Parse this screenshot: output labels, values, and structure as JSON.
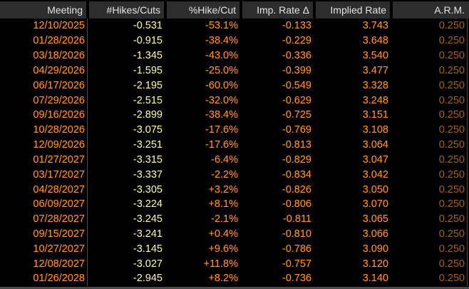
{
  "colors": {
    "background": "#000000",
    "header_bg": "#2d2d2d",
    "header_text": "#e4e4e8",
    "date_orange": "#ff9421",
    "value_yellow": "#ffffa6",
    "value_orange": "#ff9421",
    "arm_dim": "#a5610d",
    "divider": "#4a4a4a"
  },
  "table": {
    "columns": [
      "Meeting",
      "#Hikes/Cuts",
      "%Hike/Cut",
      "Imp. Rate Δ",
      "Implied Rate",
      "A.R.M."
    ],
    "rows": [
      {
        "meeting": "12/10/2025",
        "hikes_cuts": "-0.531",
        "pct_hike_cut": "-53.1%",
        "imp_rate_delta": "-0.133",
        "implied_rate": "3.743",
        "arm": "0.250"
      },
      {
        "meeting": "01/28/2026",
        "hikes_cuts": "-0.915",
        "pct_hike_cut": "-38.4%",
        "imp_rate_delta": "-0.229",
        "implied_rate": "3.648",
        "arm": "0.250"
      },
      {
        "meeting": "03/18/2026",
        "hikes_cuts": "-1.345",
        "pct_hike_cut": "-43.0%",
        "imp_rate_delta": "-0.336",
        "implied_rate": "3.540",
        "arm": "0.250"
      },
      {
        "meeting": "04/29/2026",
        "hikes_cuts": "-1.595",
        "pct_hike_cut": "-25.0%",
        "imp_rate_delta": "-0.399",
        "implied_rate": "3.477",
        "arm": "0.250"
      },
      {
        "meeting": "06/17/2026",
        "hikes_cuts": "-2.195",
        "pct_hike_cut": "-60.0%",
        "imp_rate_delta": "-0.549",
        "implied_rate": "3.328",
        "arm": "0.250"
      },
      {
        "meeting": "07/29/2026",
        "hikes_cuts": "-2.515",
        "pct_hike_cut": "-32.0%",
        "imp_rate_delta": "-0.629",
        "implied_rate": "3.248",
        "arm": "0.250"
      },
      {
        "meeting": "09/16/2026",
        "hikes_cuts": "-2.899",
        "pct_hike_cut": "-38.4%",
        "imp_rate_delta": "-0.725",
        "implied_rate": "3.151",
        "arm": "0.250"
      },
      {
        "meeting": "10/28/2026",
        "hikes_cuts": "-3.075",
        "pct_hike_cut": "-17.6%",
        "imp_rate_delta": "-0.769",
        "implied_rate": "3.108",
        "arm": "0.250"
      },
      {
        "meeting": "12/09/2026",
        "hikes_cuts": "-3.251",
        "pct_hike_cut": "-17.6%",
        "imp_rate_delta": "-0.813",
        "implied_rate": "3.064",
        "arm": "0.250"
      },
      {
        "meeting": "01/27/2027",
        "hikes_cuts": "-3.315",
        "pct_hike_cut": "-6.4%",
        "imp_rate_delta": "-0.829",
        "implied_rate": "3.047",
        "arm": "0.250"
      },
      {
        "meeting": "03/17/2027",
        "hikes_cuts": "-3.337",
        "pct_hike_cut": "-2.2%",
        "imp_rate_delta": "-0.834",
        "implied_rate": "3.042",
        "arm": "0.250"
      },
      {
        "meeting": "04/28/2027",
        "hikes_cuts": "-3.305",
        "pct_hike_cut": "+3.2%",
        "imp_rate_delta": "-0.826",
        "implied_rate": "3.050",
        "arm": "0.250"
      },
      {
        "meeting": "06/09/2027",
        "hikes_cuts": "-3.224",
        "pct_hike_cut": "+8.1%",
        "imp_rate_delta": "-0.806",
        "implied_rate": "3.070",
        "arm": "0.250"
      },
      {
        "meeting": "07/28/2027",
        "hikes_cuts": "-3.245",
        "pct_hike_cut": "-2.1%",
        "imp_rate_delta": "-0.811",
        "implied_rate": "3.065",
        "arm": "0.250"
      },
      {
        "meeting": "09/15/2027",
        "hikes_cuts": "-3.241",
        "pct_hike_cut": "+0.4%",
        "imp_rate_delta": "-0.810",
        "implied_rate": "3.066",
        "arm": "0.250"
      },
      {
        "meeting": "10/27/2027",
        "hikes_cuts": "-3.145",
        "pct_hike_cut": "+9.6%",
        "imp_rate_delta": "-0.786",
        "implied_rate": "3.090",
        "arm": "0.250"
      },
      {
        "meeting": "12/08/2027",
        "hikes_cuts": "-3.027",
        "pct_hike_cut": "+11.8%",
        "imp_rate_delta": "-0.757",
        "implied_rate": "3.120",
        "arm": "0.250"
      },
      {
        "meeting": "01/26/2028",
        "hikes_cuts": "-2.945",
        "pct_hike_cut": "+8.2%",
        "imp_rate_delta": "-0.736",
        "implied_rate": "3.140",
        "arm": "0.250"
      }
    ]
  }
}
